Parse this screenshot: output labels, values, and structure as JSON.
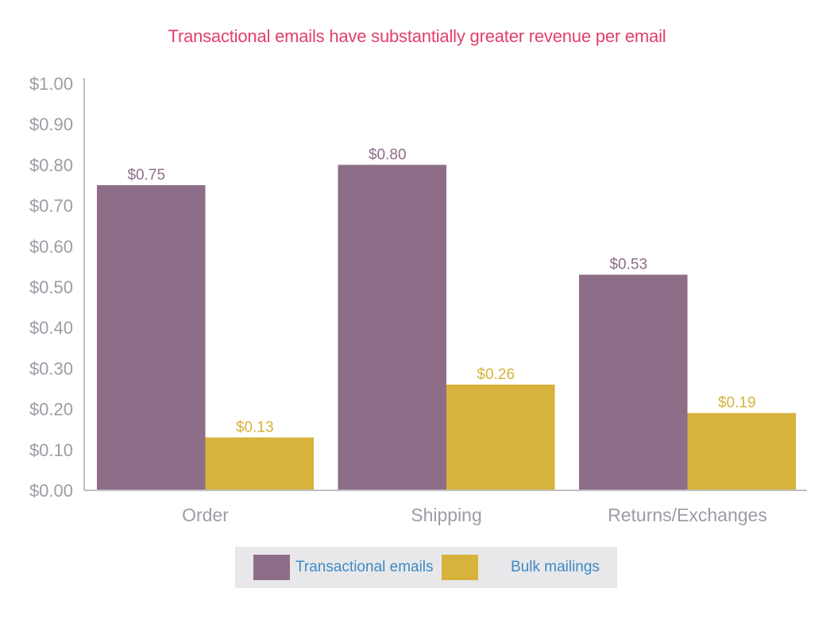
{
  "chart_data": {
    "type": "bar",
    "title": "Transactional emails have substantially greater revenue per email",
    "xlabel": "",
    "ylabel": "",
    "categories": [
      "Order",
      "Shipping",
      "Returns/Exchanges"
    ],
    "series": [
      {
        "name": "Transactional emails",
        "color": "#8e6d89",
        "values": [
          0.75,
          0.8,
          0.53
        ],
        "labels": [
          "$0.75",
          "$0.80",
          "$0.53"
        ]
      },
      {
        "name": "Bulk mailings",
        "color": "#d7b23c",
        "values": [
          0.13,
          0.26,
          0.19
        ],
        "labels": [
          "$0.13",
          "$0.26",
          "$0.19"
        ]
      }
    ],
    "ylim": [
      0,
      1.0
    ],
    "yticks": [
      0,
      0.1,
      0.2,
      0.3,
      0.4,
      0.5,
      0.6,
      0.7,
      0.8,
      0.9,
      1.0
    ],
    "ytick_labels": [
      "$0.00",
      "$0.10",
      "$0.20",
      "$0.30",
      "$0.40",
      "$0.50",
      "$0.60",
      "$0.70",
      "$0.80",
      "$0.90",
      "$1.00"
    ],
    "grid": false,
    "legend_position": "bottom-center",
    "colors": {
      "title": "#e2406a",
      "axis_text": "#9a9ea4",
      "axis_line": "#bfbfbf",
      "legend_text": "#3d8ac4",
      "legend_bg": "#e8e8ea"
    }
  }
}
